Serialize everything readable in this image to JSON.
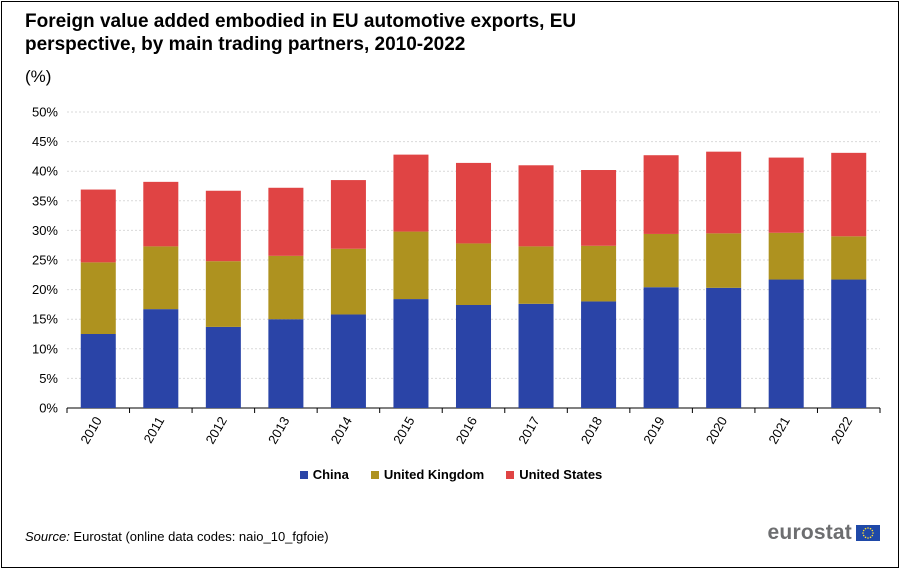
{
  "title": "Foreign value added embodied in EU automotive exports, EU perspective, by main trading partners, 2010-2022",
  "unit_label": "(%)",
  "source_prefix": "Source:",
  "source_text": " Eurostat (online data codes: naio_10_fgfoie)",
  "logo_text": "eurostat",
  "colors": {
    "China": "#2a44a7",
    "United Kingdom": "#ae921f",
    "United States": "#e04444"
  },
  "chart_data": {
    "type": "bar",
    "stacked": true,
    "categories": [
      "2010",
      "2011",
      "2012",
      "2013",
      "2014",
      "2015",
      "2016",
      "2017",
      "2018",
      "2019",
      "2020",
      "2021",
      "2022"
    ],
    "series": [
      {
        "name": "China",
        "values": [
          12.5,
          16.7,
          13.7,
          15.0,
          15.8,
          18.4,
          17.4,
          17.6,
          18.0,
          20.4,
          20.3,
          21.7,
          21.7
        ]
      },
      {
        "name": "United Kingdom",
        "values": [
          12.1,
          10.6,
          11.1,
          10.7,
          11.1,
          11.4,
          10.4,
          9.7,
          9.4,
          9.0,
          9.2,
          7.9,
          7.3
        ]
      },
      {
        "name": "United States",
        "values": [
          12.3,
          10.9,
          11.9,
          11.5,
          11.6,
          13.0,
          13.6,
          13.7,
          12.8,
          13.3,
          13.8,
          12.7,
          14.1
        ]
      }
    ],
    "y_ticks": [
      "0%",
      "5%",
      "10%",
      "15%",
      "20%",
      "25%",
      "30%",
      "35%",
      "40%",
      "45%",
      "50%"
    ],
    "ylim": [
      0,
      50
    ],
    "xlabel": "",
    "ylabel": "",
    "grid": true,
    "legend_position": "bottom"
  }
}
